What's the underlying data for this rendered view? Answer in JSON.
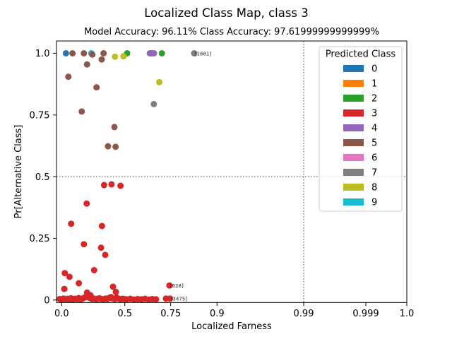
{
  "chart_data": {
    "type": "scatter",
    "title": "Localized Class Map, class 3",
    "subtitle": "Model Accuracy: 96.11% Class Accuracy: 97.61999999999999%",
    "xlabel": "Localized Farness",
    "ylabel": "Pr[Alternative Class]",
    "xlim": [
      -0.04,
      1.0
    ],
    "ylim": [
      -0.01,
      1.05
    ],
    "grid": false,
    "x_ticks": [
      {
        "value": 0.0,
        "label": "0.0"
      },
      {
        "value": 0.5,
        "label": "0.5"
      },
      {
        "value": 0.75,
        "label": "0.75"
      },
      {
        "value": 0.9,
        "label": "0.9"
      },
      {
        "value": 0.99,
        "label": "0.99"
      },
      {
        "value": 0.999,
        "label": "0.999"
      },
      {
        "value": 1.0,
        "label": "1.0"
      }
    ],
    "y_ticks": [
      {
        "value": 0.0,
        "label": "0"
      },
      {
        "value": 0.25,
        "label": "0.25"
      },
      {
        "value": 0.5,
        "label": "0.5"
      },
      {
        "value": 0.75,
        "label": "0.75"
      },
      {
        "value": 1.0,
        "label": "1.0"
      }
    ],
    "reference_lines": [
      {
        "axis": "y",
        "value": 0.5,
        "style": "dotted",
        "color": "#808080"
      },
      {
        "axis": "x",
        "value": 0.99,
        "style": "dotted",
        "color": "#808080"
      }
    ],
    "legend": {
      "title": "Predicted Class",
      "position": "top-right",
      "entries": [
        {
          "label": "0",
          "color": "#1f77b4"
        },
        {
          "label": "1",
          "color": "#ff7f0e"
        },
        {
          "label": "2",
          "color": "#2ca02c"
        },
        {
          "label": "3",
          "color": "#d62728"
        },
        {
          "label": "4",
          "color": "#9467bd"
        },
        {
          "label": "5",
          "color": "#8c564b"
        },
        {
          "label": "6",
          "color": "#e377c2"
        },
        {
          "label": "7",
          "color": "#7f7f7f"
        },
        {
          "label": "8",
          "color": "#bcbd22"
        },
        {
          "label": "9",
          "color": "#17becf"
        }
      ]
    },
    "series": [
      {
        "name": "0",
        "color": "#1f77b4",
        "points": [
          [
            0.034,
            1.0
          ]
        ]
      },
      {
        "name": "9",
        "color": "#17becf",
        "points": [
          [
            0.235,
            1.0
          ]
        ]
      },
      {
        "name": "7",
        "color": "#7f7f7f",
        "points": [
          [
            0.636,
            1.0
          ],
          [
            0.658,
            0.794
          ],
          [
            0.826,
            1.0
          ]
        ]
      },
      {
        "name": "2",
        "color": "#2ca02c",
        "points": [
          [
            0.513,
            1.0
          ],
          [
            0.702,
            1.0
          ]
        ]
      },
      {
        "name": "4",
        "color": "#9467bd",
        "points": [
          [
            0.642,
            1.0
          ],
          [
            0.649,
            1.0
          ],
          [
            0.659,
            1.0
          ]
        ]
      },
      {
        "name": "5",
        "color": "#8c564b",
        "points": [
          [
            0.086,
            1.0
          ],
          [
            0.176,
            1.0
          ],
          [
            0.243,
            0.995
          ],
          [
            0.332,
            1.0
          ],
          [
            0.317,
            0.975
          ],
          [
            0.201,
            0.955
          ],
          [
            0.053,
            0.905
          ],
          [
            0.276,
            0.862
          ],
          [
            0.159,
            0.764
          ],
          [
            0.418,
            0.701
          ],
          [
            0.367,
            0.623
          ],
          [
            0.427,
            0.621
          ]
        ]
      },
      {
        "name": "8",
        "color": "#bcbd22",
        "points": [
          [
            0.422,
            0.986
          ],
          [
            0.489,
            0.988
          ],
          [
            0.688,
            0.883
          ]
        ]
      },
      {
        "name": "3",
        "color": "#d62728",
        "points": [
          [
            0.336,
            0.466
          ],
          [
            0.395,
            0.469
          ],
          [
            0.466,
            0.463
          ],
          [
            0.198,
            0.391
          ],
          [
            0.075,
            0.309
          ],
          [
            0.319,
            0.3
          ],
          [
            0.176,
            0.226
          ],
          [
            0.312,
            0.212
          ],
          [
            0.345,
            0.183
          ],
          [
            0.025,
            0.109
          ],
          [
            0.062,
            0.094
          ],
          [
            0.257,
            0.121
          ],
          [
            0.136,
            0.068
          ],
          [
            0.021,
            0.045
          ],
          [
            0.407,
            0.054
          ],
          [
            0.429,
            0.033
          ],
          [
            0.201,
            0.03
          ],
          [
            0.228,
            0.019
          ],
          [
            0.743,
            0.059
          ],
          [
            0.724,
            0.006
          ],
          [
            0.746,
            0.006
          ],
          [
            -0.015,
            0.004
          ],
          [
            0.0,
            0.002
          ],
          [
            0.015,
            0.006
          ],
          [
            0.03,
            0.003
          ],
          [
            0.045,
            0.005
          ],
          [
            0.06,
            0.002
          ],
          [
            0.075,
            0.007
          ],
          [
            0.09,
            0.003
          ],
          [
            0.105,
            0.005
          ],
          [
            0.12,
            0.004
          ],
          [
            0.135,
            0.008
          ],
          [
            0.15,
            0.003
          ],
          [
            0.165,
            0.006
          ],
          [
            0.18,
            0.01
          ],
          [
            0.195,
            0.012
          ],
          [
            0.21,
            0.017
          ],
          [
            0.225,
            0.008
          ],
          [
            0.24,
            0.004
          ],
          [
            0.255,
            0.006
          ],
          [
            0.27,
            0.003
          ],
          [
            0.285,
            0.005
          ],
          [
            0.3,
            0.007
          ],
          [
            0.315,
            0.004
          ],
          [
            0.33,
            0.003
          ],
          [
            0.345,
            0.006
          ],
          [
            0.36,
            0.004
          ],
          [
            0.375,
            0.008
          ],
          [
            0.39,
            0.012
          ],
          [
            0.405,
            0.006
          ],
          [
            0.42,
            0.004
          ],
          [
            0.435,
            0.01
          ],
          [
            0.45,
            0.006
          ],
          [
            0.465,
            0.003
          ],
          [
            0.48,
            0.005
          ],
          [
            0.495,
            0.004
          ],
          [
            0.51,
            0.003
          ],
          [
            0.53,
            0.005
          ],
          [
            0.55,
            0.002
          ],
          [
            0.57,
            0.004
          ],
          [
            0.59,
            0.003
          ],
          [
            0.61,
            0.005
          ],
          [
            0.63,
            0.002
          ],
          [
            0.65,
            0.004
          ],
          [
            0.67,
            0.003
          ]
        ]
      }
    ],
    "annotations": [
      {
        "text": "[1681]",
        "x": 0.826,
        "y": 1.0
      },
      {
        "text": "[628]",
        "x": 0.743,
        "y": 0.059
      },
      {
        "text": "[3475]",
        "x": 0.746,
        "y": 0.006
      }
    ]
  }
}
